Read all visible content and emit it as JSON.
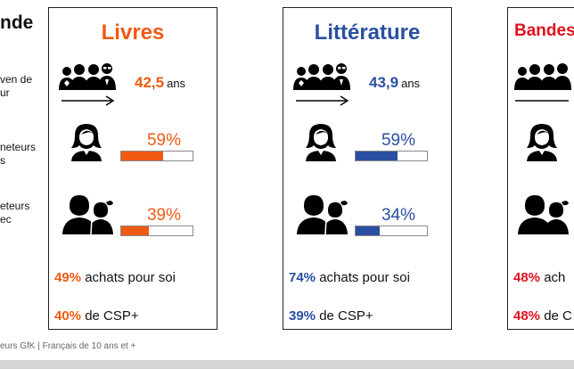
{
  "left_panel": {
    "title": "nde",
    "labels": [
      "ven de\nur",
      "neteurs\ns",
      "eteurs\nec"
    ]
  },
  "colors": {
    "orange": "#f05a14",
    "blue": "#2a4fa2",
    "red": "#e01020",
    "bar_border": "#8a8a8a"
  },
  "icons": {
    "group": "people-group-icon",
    "woman": "woman-icon",
    "parent_child": "parent-child-icon",
    "arrow": "right-arrow-icon"
  },
  "cards": [
    {
      "title": "Livres",
      "color": "#f05a14",
      "age_value": "42,5",
      "age_unit": "ans",
      "women_pct_label": "59%",
      "women_share": 0.59,
      "children_pct_label": "39%",
      "children_share": 0.39,
      "self_pct": "49%",
      "self_text": " achats pour soi",
      "csp_pct": "40%",
      "csp_text": " de CSP+"
    },
    {
      "title": "Littérature",
      "color": "#2a4fa2",
      "age_value": "43,9",
      "age_unit": "ans",
      "women_pct_label": "59%",
      "women_share": 0.59,
      "children_pct_label": "34%",
      "children_share": 0.34,
      "self_pct": "74%",
      "self_text": " achats pour soi",
      "csp_pct": "39%",
      "csp_text": " de CSP+"
    },
    {
      "title": "Bandes",
      "color": "#e01020",
      "self_pct": "48%",
      "self_text": " ach",
      "csp_pct": "48%",
      "csp_text": " de C"
    }
  ],
  "footer": "eurs GfK | Français de 10 ans et +"
}
